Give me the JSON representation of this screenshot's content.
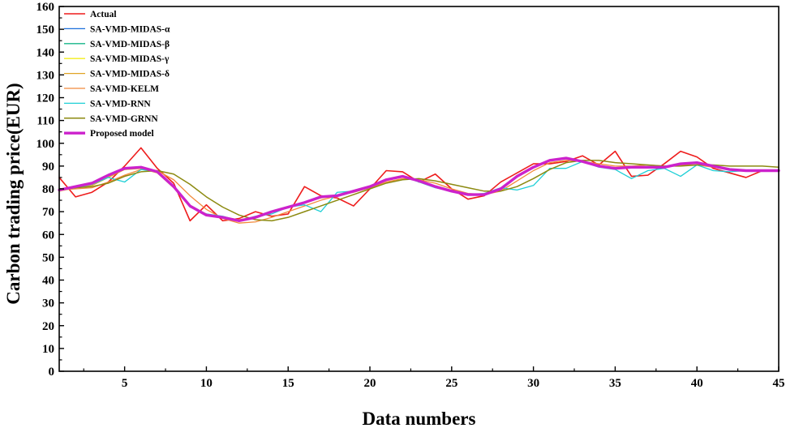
{
  "chart_data": {
    "type": "line",
    "xlabel": "Data numbers",
    "ylabel": "Carbon trading price(EUR)",
    "xlim": [
      1,
      45
    ],
    "ylim": [
      0,
      160
    ],
    "xticks": [
      5,
      10,
      15,
      20,
      25,
      30,
      35,
      40,
      45
    ],
    "yticks": [
      0,
      10,
      20,
      30,
      40,
      50,
      60,
      70,
      80,
      90,
      100,
      110,
      120,
      130,
      140,
      150,
      160
    ],
    "grid": false,
    "legend_position": "top-left",
    "x": [
      1,
      2,
      3,
      4,
      5,
      6,
      7,
      8,
      9,
      10,
      11,
      12,
      13,
      14,
      15,
      16,
      17,
      18,
      19,
      20,
      21,
      22,
      23,
      24,
      25,
      26,
      27,
      28,
      29,
      30,
      31,
      32,
      33,
      34,
      35,
      36,
      37,
      38,
      39,
      40,
      41,
      42,
      43,
      44,
      45
    ],
    "series": [
      {
        "name": "Actual",
        "color": "#ee1c1c",
        "width": 1.6,
        "values": [
          85,
          76.5,
          78.5,
          83,
          90,
          98,
          89,
          82.5,
          66,
          73,
          66,
          67,
          70,
          68,
          69,
          81,
          77,
          76,
          72.5,
          80,
          88,
          87.5,
          83,
          86.5,
          80,
          75.5,
          77,
          83,
          87,
          91,
          91,
          92,
          94.5,
          90.5,
          96.5,
          85.5,
          86,
          91,
          96.5,
          94,
          89,
          87,
          85,
          88,
          88
        ]
      },
      {
        "name": "SA-VMD-MIDAS-α",
        "color": "#1a6fdb",
        "width": 1.3,
        "values": [
          79.5,
          81,
          82.5,
          86,
          89,
          89.5,
          87.5,
          81,
          72.5,
          68.5,
          67.5,
          66,
          67.5,
          70,
          72,
          74,
          76.5,
          77,
          79,
          81,
          84,
          85.5,
          83.5,
          81,
          79,
          77.5,
          77.5,
          80,
          85.5,
          89.5,
          92.5,
          93.5,
          92,
          90,
          89,
          89.5,
          89.5,
          89.5,
          91,
          91.5,
          90,
          88.5,
          88,
          88,
          88
        ]
      },
      {
        "name": "SA-VMD-MIDAS-β",
        "color": "#14b488",
        "width": 1.3,
        "values": [
          79.5,
          81,
          82.5,
          86,
          89,
          89.5,
          87.5,
          81,
          72.5,
          68.5,
          67.5,
          66,
          67.5,
          70,
          72,
          74,
          76.5,
          77,
          79,
          81,
          84,
          85.5,
          83.5,
          81,
          79,
          77.5,
          77.5,
          80,
          85.5,
          89.5,
          92.5,
          93.5,
          92,
          90,
          89,
          89.5,
          89.5,
          89.5,
          91,
          91.5,
          90,
          88.5,
          88,
          88,
          88
        ]
      },
      {
        "name": "SA-VMD-MIDAS-γ",
        "color": "#f2ee1c",
        "width": 1.3,
        "values": [
          79,
          80.5,
          82,
          85.5,
          88.5,
          89,
          87,
          81,
          72.5,
          68.5,
          67.5,
          66,
          67.5,
          70,
          72,
          74,
          76.5,
          77,
          79,
          81,
          84,
          85.5,
          83.5,
          81,
          79,
          77.5,
          77.5,
          80,
          85.5,
          89.5,
          92.5,
          93.5,
          92,
          90,
          89,
          89.5,
          89.5,
          89.5,
          91,
          91.5,
          90,
          88.5,
          88,
          88,
          88
        ]
      },
      {
        "name": "SA-VMD-MIDAS-δ",
        "color": "#e0a424",
        "width": 1.3,
        "values": [
          79.5,
          80.5,
          81.5,
          85,
          88.5,
          89,
          87,
          80.5,
          72.5,
          69,
          67.5,
          66.5,
          67.5,
          70,
          72,
          74,
          76,
          77,
          79,
          81,
          84,
          85.5,
          83.5,
          81,
          79,
          77.5,
          77.5,
          80,
          85.5,
          89.5,
          92.5,
          93.5,
          92,
          90,
          89,
          89.5,
          89.5,
          89.5,
          91,
          91.5,
          90,
          88.5,
          88,
          88,
          88
        ]
      },
      {
        "name": "SA-VMD-KELM",
        "color": "#f28a3c",
        "width": 1.3,
        "values": [
          79.5,
          80,
          80.5,
          83,
          86,
          88.5,
          88,
          84,
          77,
          71,
          67,
          65,
          65.5,
          67.5,
          70,
          72.5,
          75,
          77,
          78.5,
          80.5,
          83,
          84.5,
          84,
          82.5,
          80,
          78,
          77.5,
          79,
          83.5,
          88,
          91.5,
          92.5,
          92,
          91,
          90,
          90,
          90.5,
          90,
          90.5,
          90.5,
          89.5,
          88.5,
          88,
          88,
          88
        ]
      },
      {
        "name": "SA-VMD-RNN",
        "color": "#1ecfd6",
        "width": 1.3,
        "values": [
          79.5,
          80.5,
          82,
          85,
          83,
          88.5,
          87.5,
          81.5,
          72,
          69,
          68,
          66,
          68,
          69,
          72,
          73,
          70,
          78.5,
          79,
          81,
          84,
          85.5,
          83,
          80.5,
          79,
          77.5,
          78,
          80.5,
          79.5,
          81.5,
          89,
          89,
          92,
          89.5,
          88.5,
          84.5,
          88,
          89,
          85.5,
          90.5,
          88,
          87.5,
          88,
          88,
          88
        ]
      },
      {
        "name": "SA-VMD-GRNN",
        "color": "#8c8a10",
        "width": 1.5,
        "values": [
          80,
          80.5,
          81,
          82.5,
          85.5,
          87.5,
          88,
          86.5,
          82,
          76.5,
          72,
          68.5,
          66.5,
          66,
          67.5,
          70,
          72.5,
          75,
          77.5,
          80,
          82.5,
          84,
          84.5,
          83.5,
          82,
          80.5,
          79,
          79,
          81,
          84.5,
          88.5,
          91.5,
          92.5,
          92.5,
          91.5,
          91,
          90.5,
          90,
          90,
          90.5,
          90.5,
          90,
          90,
          90,
          89.5
        ]
      },
      {
        "name": "Proposed model",
        "color": "#cc22cc",
        "width": 3.4,
        "values": [
          79.5,
          81,
          82.5,
          86,
          89,
          89.5,
          87.5,
          81,
          72.5,
          68.5,
          67.5,
          66,
          67.5,
          70,
          72,
          74,
          76.5,
          77,
          79,
          81,
          84,
          85.5,
          83.5,
          81,
          79,
          77.5,
          77.5,
          80,
          85.5,
          89.5,
          92.5,
          93.5,
          92,
          90,
          89,
          89.5,
          89.5,
          89.5,
          91,
          91.5,
          90,
          88.5,
          88,
          88,
          88
        ]
      }
    ]
  }
}
